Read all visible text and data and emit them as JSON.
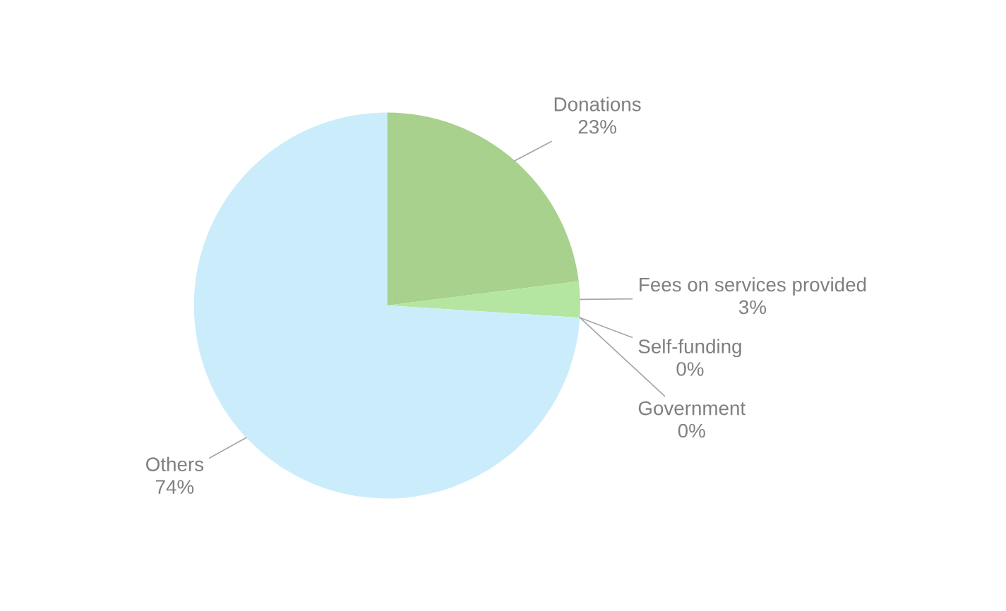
{
  "chart_data": {
    "type": "pie",
    "categories": [
      "Donations",
      "Fees on services provided",
      "Self-funding",
      "Government",
      "Others"
    ],
    "values": [
      23,
      3,
      0,
      0,
      74
    ],
    "colors": [
      "#a9d18e",
      "#b4e6a2",
      "#9dc3e6",
      "#f4b183",
      "#cbedfb"
    ],
    "value_labels": [
      "23%",
      "3%",
      "0%",
      "0%",
      "74%"
    ],
    "legend": false
  }
}
